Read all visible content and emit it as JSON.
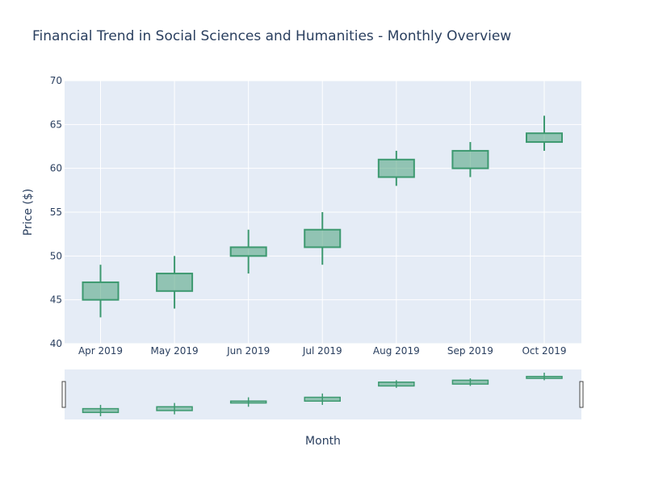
{
  "chart_data": {
    "type": "candlestick",
    "title": "Financial Trend in Social Sciences and Humanities - Monthly Overview",
    "xlabel": "Month",
    "ylabel": "Price ($)",
    "ylim": [
      40,
      70
    ],
    "yticks": [
      "40",
      "45",
      "50",
      "55",
      "60",
      "65",
      "70"
    ],
    "categories": [
      "Apr 2019",
      "May 2019",
      "Jun 2019",
      "Jul 2019",
      "Aug 2019",
      "Sep 2019",
      "Oct 2019"
    ],
    "series": [
      {
        "open": [
          45,
          46,
          50,
          51,
          59,
          60,
          63
        ],
        "high": [
          49,
          50,
          53,
          55,
          62,
          63,
          66
        ],
        "low": [
          43,
          44,
          48,
          49,
          58,
          59,
          62
        ],
        "close": [
          47,
          48,
          51,
          53,
          61,
          62,
          64
        ]
      }
    ],
    "colors": {
      "increasing_line": "#3d9970",
      "increasing_fill": "rgba(61,153,112,0.5)",
      "plot_bg": "#e5ecf6",
      "grid": "#ffffff",
      "text": "#2a3f5f"
    },
    "grid": true,
    "rangeslider": true
  }
}
